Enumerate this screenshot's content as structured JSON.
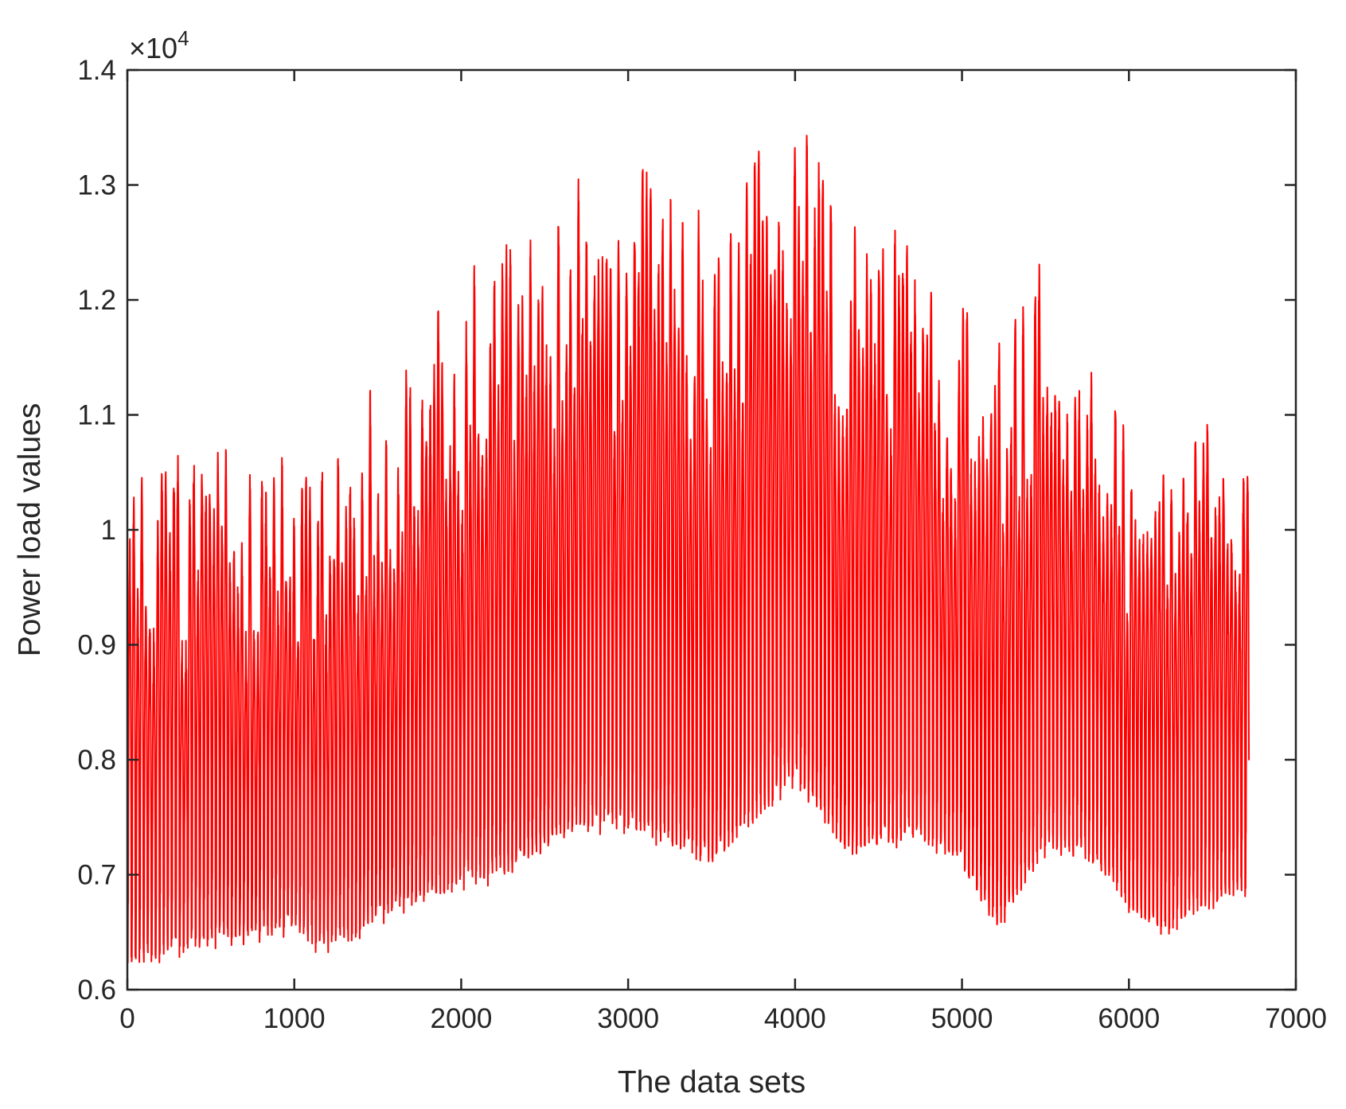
{
  "chart_data": {
    "type": "line",
    "title": "",
    "xlabel": "The data sets",
    "ylabel": "Power load values",
    "xlim": [
      0,
      7000
    ],
    "ylim": [
      0.6,
      1.4
    ],
    "y_multiplier_label": "×10",
    "y_multiplier_exponent": "4",
    "x_ticks": [
      0,
      1000,
      2000,
      3000,
      4000,
      5000,
      6000,
      7000
    ],
    "y_ticks": [
      0.6,
      0.7,
      0.8,
      0.9,
      1,
      1.1,
      1.2,
      1.3,
      1.4
    ],
    "x_tick_labels": [
      "0",
      "1000",
      "2000",
      "3000",
      "4000",
      "5000",
      "6000",
      "7000"
    ],
    "y_tick_labels": [
      "0.6",
      "0.7",
      "0.8",
      "0.9",
      "1",
      "1.1",
      "1.2",
      "1.3",
      "1.4"
    ],
    "grid": false,
    "series": [
      {
        "color": "#ff0000",
        "n_points": 6720,
        "cycle_length": 24,
        "envelope_x": [
          0,
          500,
          1000,
          1200,
          1500,
          2000,
          2300,
          2700,
          3000,
          3500,
          4000,
          4300,
          4700,
          5000,
          5200,
          5500,
          5800,
          6000,
          6200,
          6500,
          6720
        ],
        "envelope_min": [
          0.62,
          0.64,
          0.65,
          0.63,
          0.66,
          0.69,
          0.7,
          0.74,
          0.74,
          0.71,
          0.78,
          0.72,
          0.73,
          0.71,
          0.65,
          0.72,
          0.71,
          0.67,
          0.65,
          0.67,
          0.68
        ],
        "envelope_max": [
          1.02,
          1.05,
          1.05,
          1.06,
          1.12,
          1.2,
          1.26,
          1.3,
          1.33,
          1.28,
          1.38,
          1.27,
          1.24,
          1.19,
          1.16,
          1.22,
          1.2,
          1.04,
          1.12,
          1.12,
          1.07
        ]
      }
    ]
  }
}
